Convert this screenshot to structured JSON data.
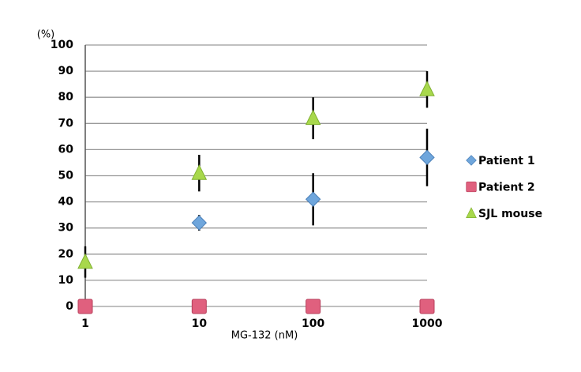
{
  "chart_data": {
    "type": "scatter",
    "y_label": "(%)",
    "x_label": "MG-132 (nM)",
    "x": [
      1,
      10,
      100,
      1000
    ],
    "xlim": [
      1,
      1000
    ],
    "xticks": [
      1,
      10,
      100,
      1000
    ],
    "xscale": "log",
    "ylim": [
      0,
      100
    ],
    "yticks": [
      0,
      10,
      20,
      30,
      40,
      50,
      60,
      70,
      80,
      90,
      100
    ],
    "grid": true,
    "legend": "right",
    "series": [
      {
        "name": "Patient 1",
        "color": "#6fa6dc",
        "marker": "diamond",
        "values": [
          null,
          32,
          41,
          57
        ],
        "errors": [
          null,
          3,
          10,
          11
        ]
      },
      {
        "name": "Patient 2",
        "color": "#e0607e",
        "marker": "square",
        "values": [
          0,
          0,
          0,
          0
        ],
        "errors": [
          null,
          null,
          null,
          null
        ]
      },
      {
        "name": "SJL mouse",
        "color": "#a8d84c",
        "marker": "triangle",
        "values": [
          17,
          51,
          72,
          83
        ],
        "errors": [
          6,
          7,
          8,
          7
        ]
      }
    ]
  }
}
